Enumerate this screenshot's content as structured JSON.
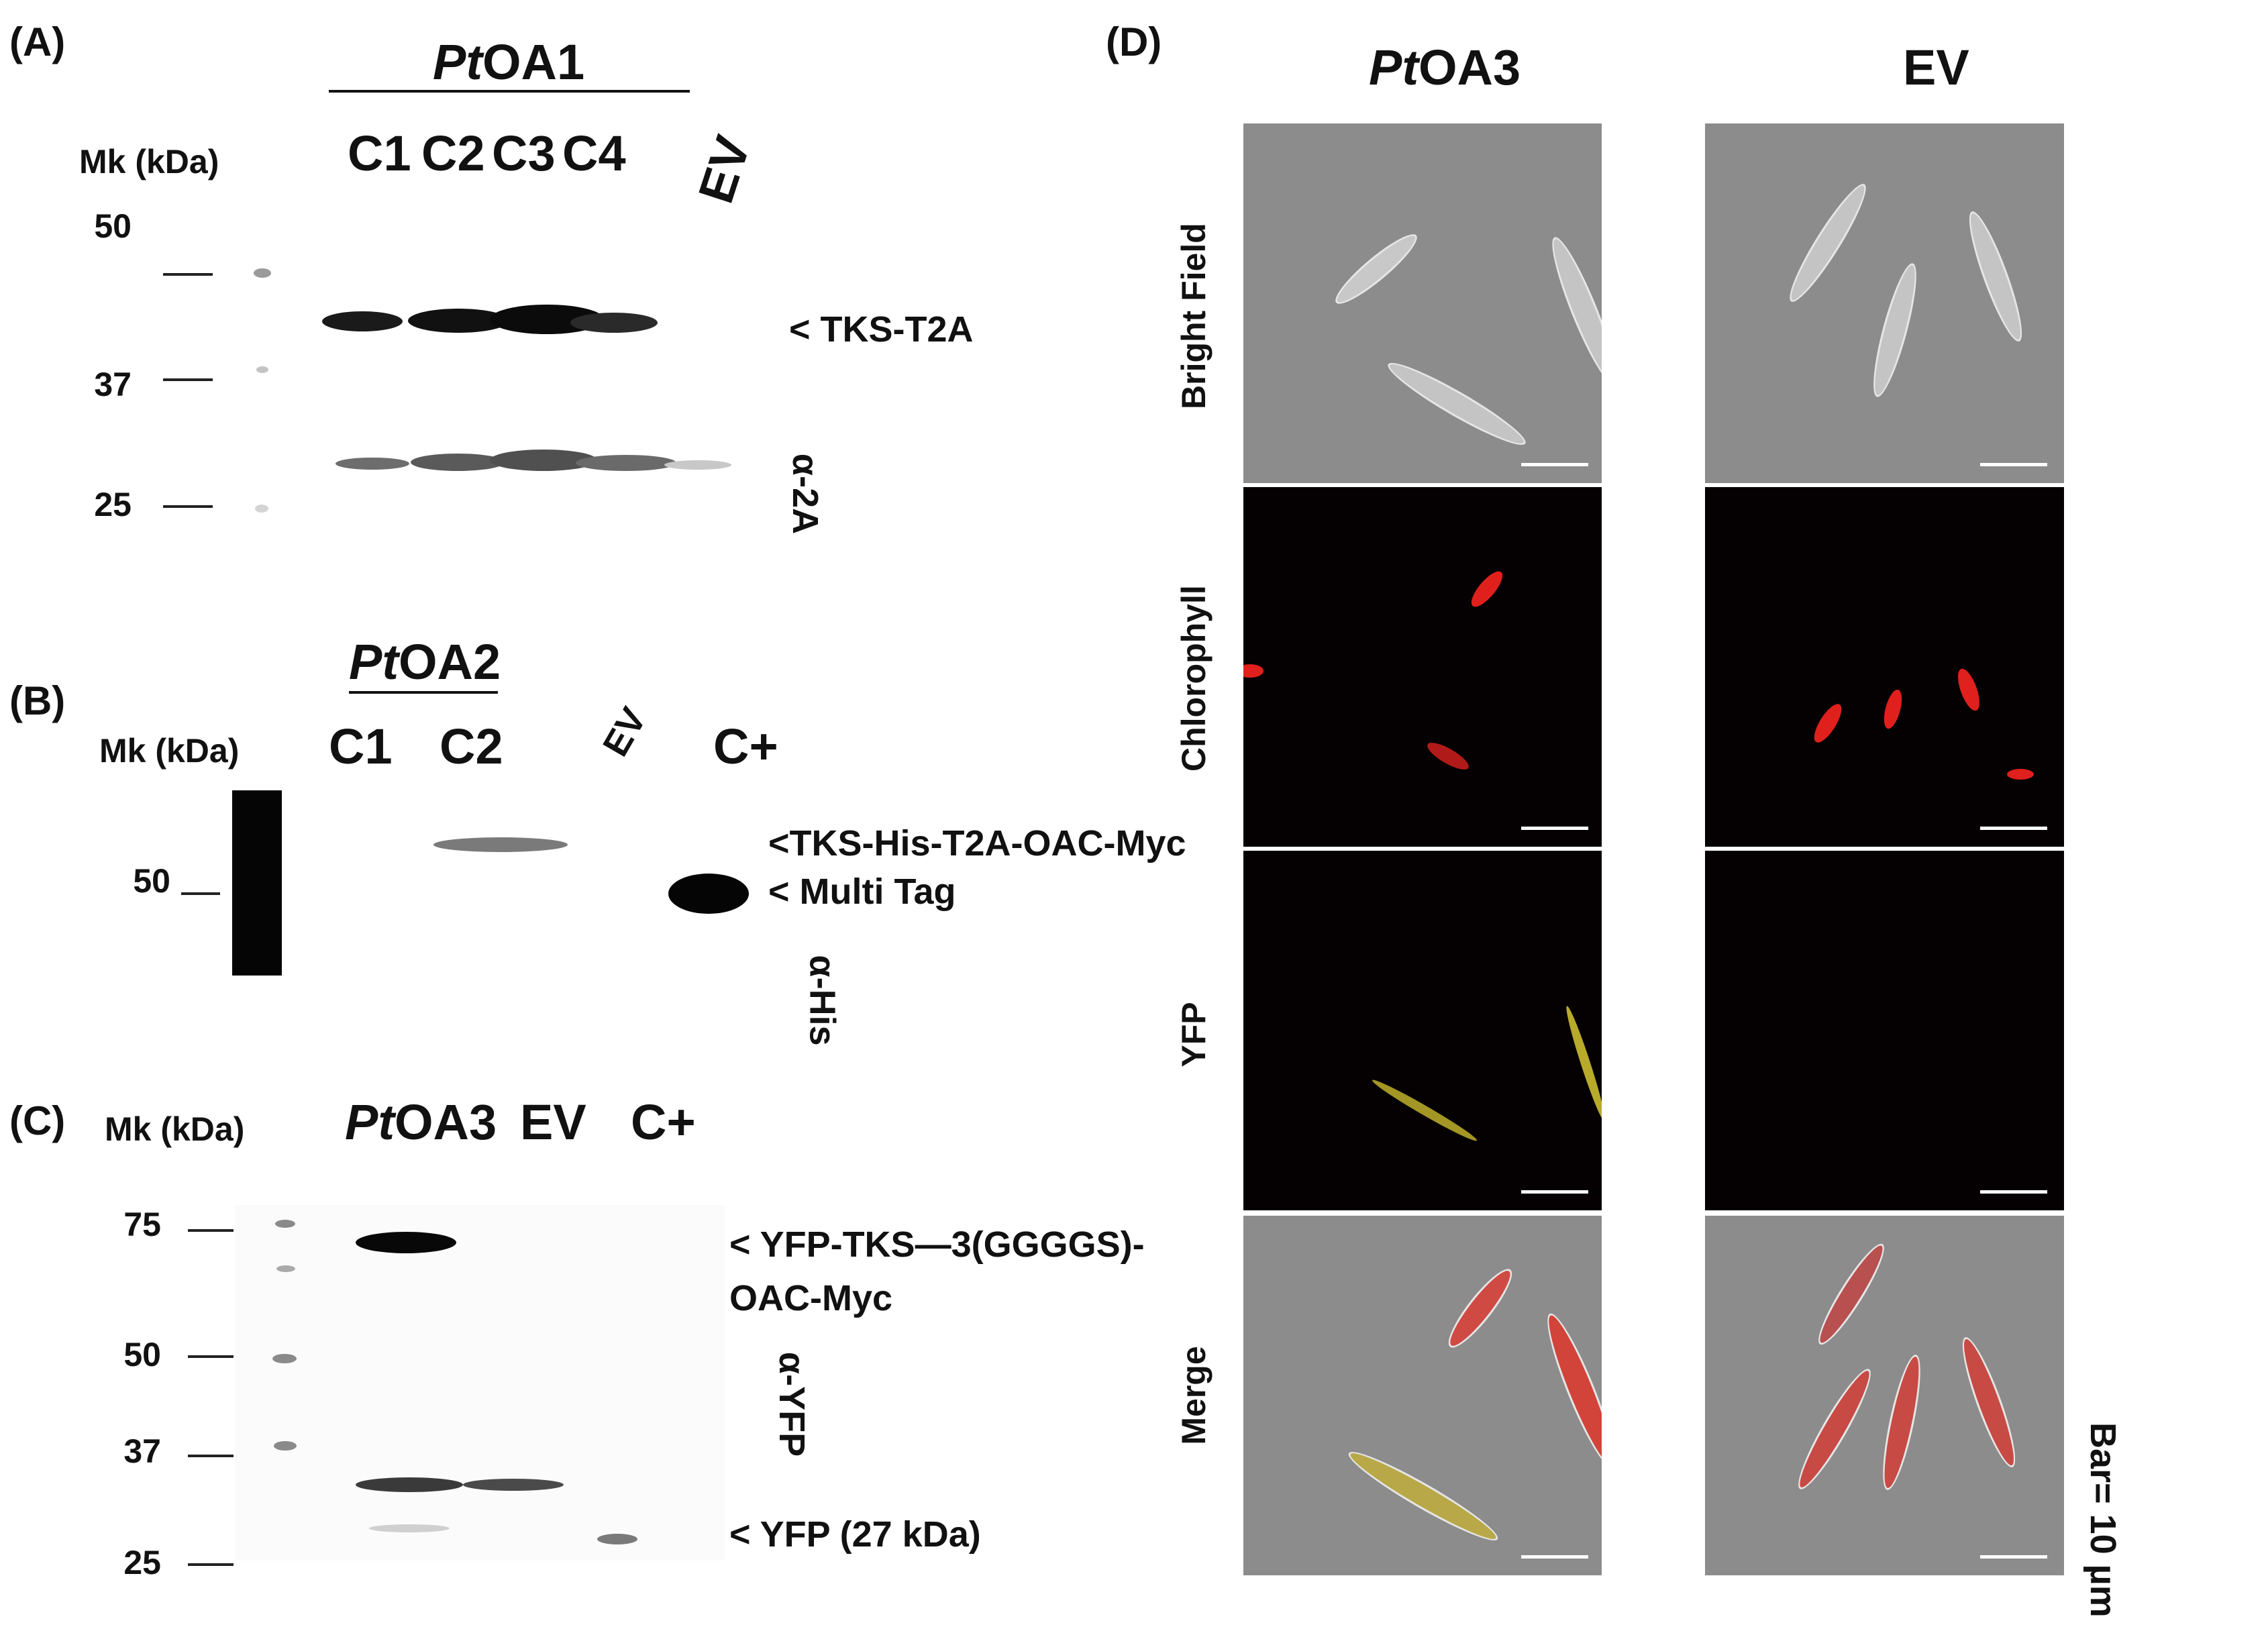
{
  "panel_a": {
    "letter": "(A)",
    "group_prefix": "Pt",
    "group_suffix": "OA1",
    "mk_label": "Mk (kDa)",
    "lanes": [
      "C1",
      "C2",
      "C3",
      "C4",
      "EV"
    ],
    "markers": [
      "50",
      "37",
      "25"
    ],
    "band_label": "< TKS-T2A",
    "antibody": "α-2A"
  },
  "panel_b": {
    "letter": "(B)",
    "group_prefix": "Pt",
    "group_suffix": "OA2",
    "mk_label": "Mk (kDa)",
    "lanes": [
      "C1",
      "C2",
      "EV",
      "C+"
    ],
    "markers": [
      "50"
    ],
    "band_labels": [
      "<TKS-His-T2A-OAC-Myc",
      "< Multi  Tag"
    ],
    "antibody": "α-His"
  },
  "panel_c": {
    "letter": "(C)",
    "mk_label": "Mk (kDa)",
    "lane1_prefix": "Pt",
    "lane1_suffix": "OA3",
    "lanes": [
      "EV",
      "C+"
    ],
    "markers": [
      "75",
      "50",
      "37",
      "25"
    ],
    "band_labels": [
      "< YFP-TKS—3(GGGGS)-",
      "OAC-Myc",
      "< YFP (27 kDa)"
    ],
    "antibody": "α-YFP"
  },
  "panel_d": {
    "letter": "(D)",
    "col1_prefix": "Pt",
    "col1_suffix": "OA3",
    "col2": "EV",
    "rows": [
      "Bright Field",
      "Chlorophyll",
      "YFP",
      "Merge"
    ],
    "scale_note": "Bar= 10 µm"
  },
  "colors": {
    "chlorophyll": "#e0201c",
    "yfp": "#d8c832",
    "brightfield_bg": "#8c8c8c",
    "fluor_bg": "#050102"
  }
}
